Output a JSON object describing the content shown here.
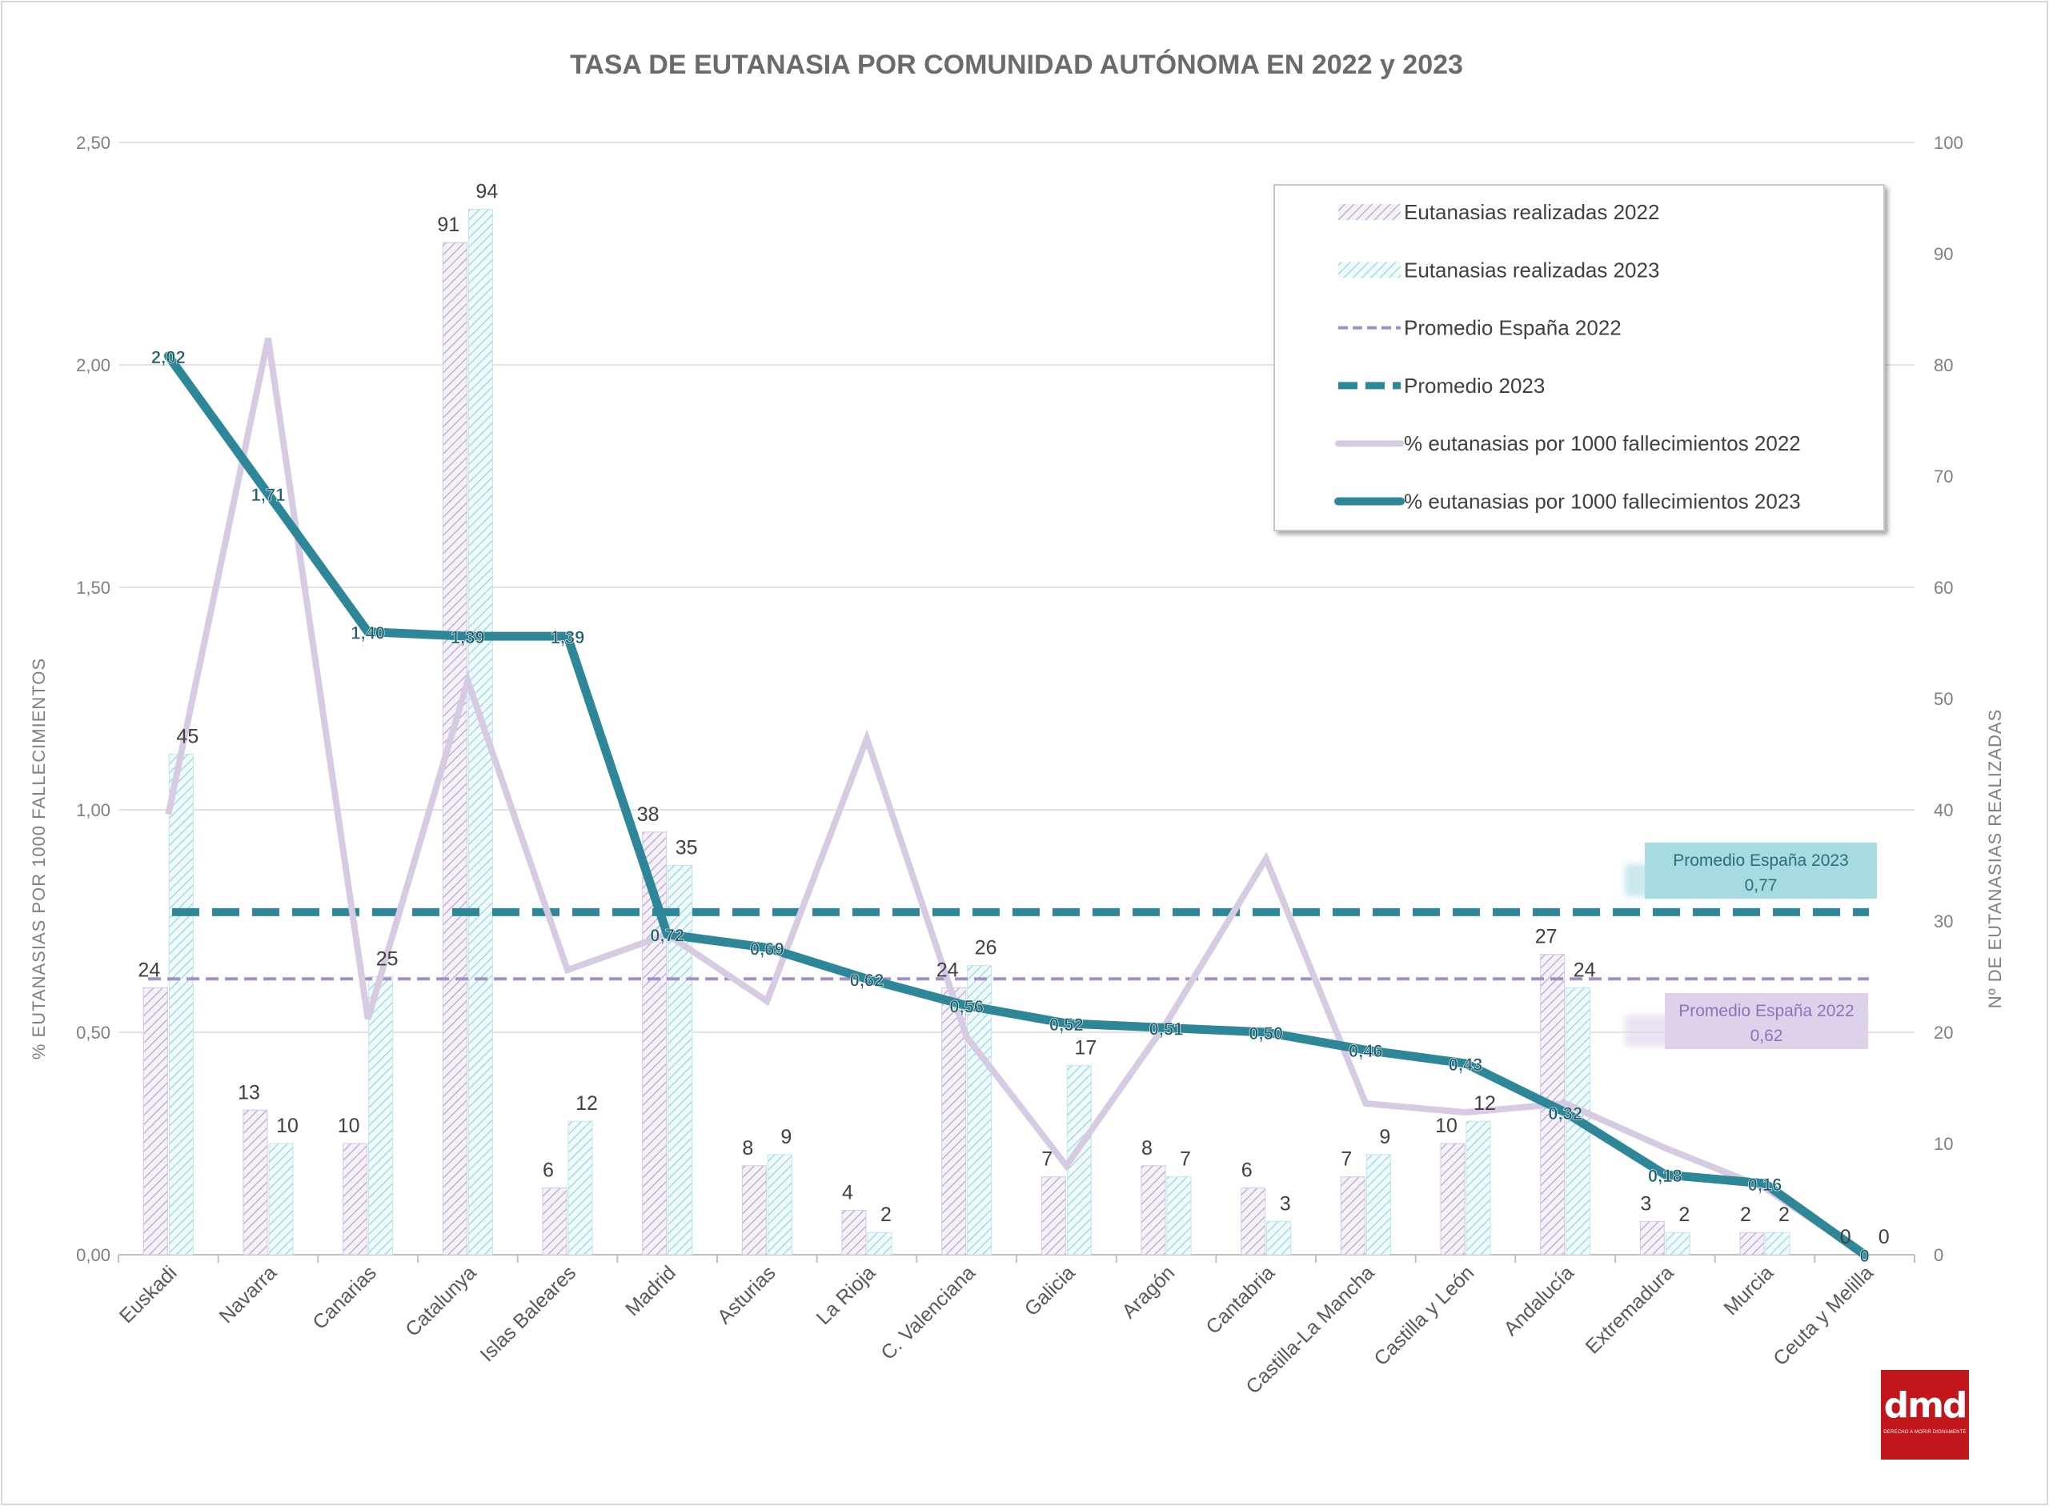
{
  "chart_data": {
    "type": "bar",
    "title": "TASA DE EUTANASIA POR COMUNIDAD AUTÓNOMA EN 2022 y 2023",
    "ylabel_left": "% EUTANASIAS POR 1000 FALLECIMIENTOS",
    "ylabel_right": "Nº DE EUTANASIAS REALIZADAS",
    "ylim_left": [
      0,
      2.5
    ],
    "ylim_right": [
      0,
      100
    ],
    "yticks_left": [
      "0,00",
      "0,50",
      "1,00",
      "1,50",
      "2,00",
      "2,50"
    ],
    "yticks_right": [
      "0",
      "10",
      "20",
      "30",
      "40",
      "50",
      "60",
      "70",
      "80",
      "90",
      "100"
    ],
    "grid": true,
    "legend_position": "top-right",
    "categories": [
      "Euskadi",
      "Navarra",
      "Canarias",
      "Catalunya",
      "Islas Baleares",
      "Madrid",
      "Asturias",
      "La Rioja",
      "C. Valenciana",
      "Galicia",
      "Aragón",
      "Cantabria",
      "Castilla-La Mancha",
      "Castilla y León",
      "Andalucía",
      "Extremadura",
      "Murcia",
      "Ceuta y Melilla"
    ],
    "series": [
      {
        "name": "Eutanasias realizadas 2022",
        "kind": "bar",
        "axis": "right",
        "color": "#b9a4cf",
        "values": [
          24,
          13,
          10,
          91,
          6,
          38,
          8,
          4,
          24,
          7,
          8,
          6,
          7,
          10,
          27,
          3,
          2,
          0
        ],
        "labels": [
          "24",
          "13",
          "10",
          "91",
          "6",
          "38",
          "8",
          "4",
          "24",
          "7",
          "8",
          "6",
          "7",
          "10",
          "27",
          "3",
          "2",
          "0"
        ]
      },
      {
        "name": "Eutanasias realizadas 2023",
        "kind": "bar",
        "axis": "right",
        "color": "#93d6de",
        "values": [
          45,
          10,
          25,
          94,
          12,
          35,
          9,
          2,
          26,
          17,
          7,
          3,
          9,
          12,
          24,
          2,
          2,
          0
        ],
        "labels": [
          "45",
          "10",
          "25",
          "94",
          "12",
          "35",
          "9",
          "2",
          "26",
          "17",
          "7",
          "3",
          "9",
          "12",
          "24",
          "2",
          "2",
          "0"
        ]
      },
      {
        "name": "Promedio España 2022",
        "kind": "hline",
        "axis": "left",
        "color": "#a58fc9",
        "value": 0.62
      },
      {
        "name": "Promedio 2023",
        "kind": "hline",
        "axis": "left",
        "color": "#2e8799",
        "value": 0.77
      },
      {
        "name": "% eutanasias por 1000 fallecimientos 2022",
        "kind": "line",
        "axis": "left",
        "color": "#d6cbe2",
        "values": [
          0.99,
          2.06,
          0.53,
          1.29,
          0.64,
          0.72,
          0.57,
          1.16,
          0.49,
          0.2,
          0.52,
          0.89,
          0.34,
          0.32,
          0.34,
          0.24,
          0.15,
          0.0
        ]
      },
      {
        "name": "% eutanasias por 1000 fallecimientos 2023",
        "kind": "line",
        "axis": "left",
        "color": "#2e8799",
        "values": [
          2.02,
          1.71,
          1.4,
          1.39,
          1.39,
          0.72,
          0.69,
          0.62,
          0.56,
          0.52,
          0.51,
          0.5,
          0.46,
          0.43,
          0.32,
          0.18,
          0.16,
          0
        ],
        "labels": [
          "2,02",
          "1,71",
          "1,40",
          "1,39",
          "1,39",
          "0,72",
          "0,69",
          "0,62",
          "0,56",
          "0,52",
          "0,51",
          "0,50",
          "0,46",
          "0,43",
          "0,32",
          "0,18",
          "0,16",
          "0"
        ]
      }
    ],
    "annotations": [
      {
        "text_line1": "Promedio España 2023",
        "text_line2": "0,77",
        "color": "#2e8799",
        "background": "#a6dbe2"
      },
      {
        "text_line1": "Promedio España 2022",
        "text_line2": "0,62",
        "color": "#8e72bd",
        "background": "#ddd2ea"
      }
    ]
  },
  "logo": {
    "text": "dmd",
    "subtext": "DERECHO A MORIR DIGNAMENTE"
  }
}
